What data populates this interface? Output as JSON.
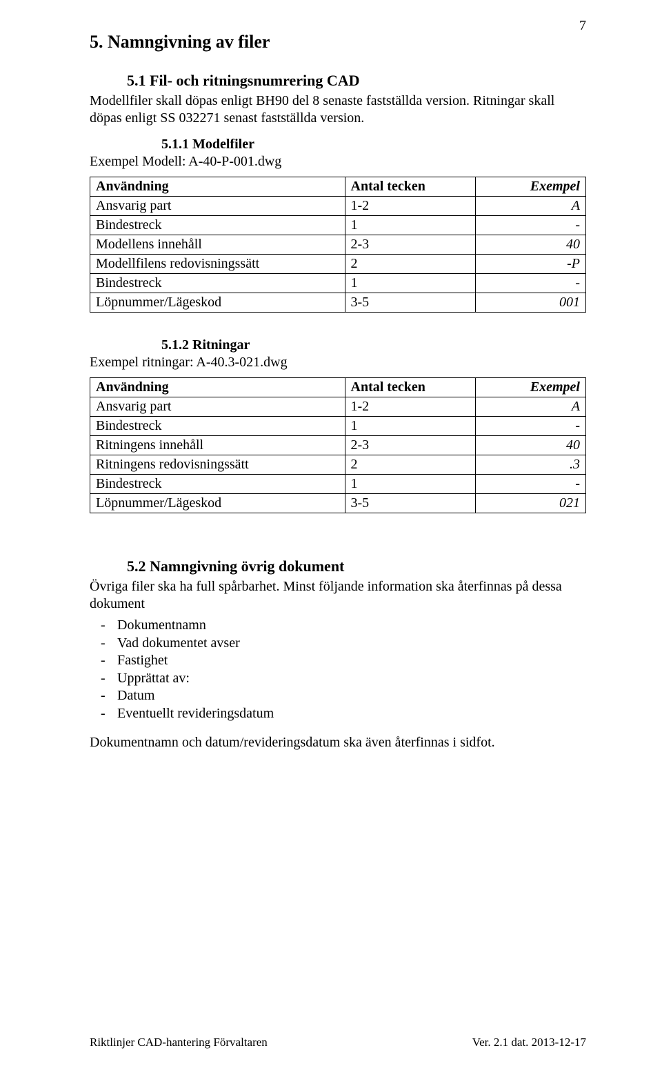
{
  "page_number": "7",
  "h1": "5.  Namngivning av filer",
  "sec51": {
    "heading": "5.1  Fil- och ritningsnumrering CAD",
    "p1": "Modellfiler skall döpas enligt BH90 del 8 senaste fastställda version. Ritningar skall döpas enligt SS 032271 senast fastställda version."
  },
  "sec511": {
    "heading": "5.1.1   Modelfiler",
    "example": "Exempel Modell: A-40-P-001.dwg"
  },
  "table1": {
    "headers": [
      "Användning",
      "Antal tecken",
      "Exempel"
    ],
    "rows": [
      [
        "Ansvarig part",
        "1-2",
        "A"
      ],
      [
        "Bindestreck",
        "1",
        "-"
      ],
      [
        "Modellens innehåll",
        "2-3",
        "40"
      ],
      [
        "Modellfilens redovisningssätt",
        "2",
        "-P"
      ],
      [
        "Bindestreck",
        "1",
        "-"
      ],
      [
        "Löpnummer/Lägeskod",
        "3-5",
        "001"
      ]
    ]
  },
  "sec512": {
    "heading": "5.1.2   Ritningar",
    "example": "Exempel ritningar: A-40.3-021.dwg"
  },
  "table2": {
    "headers": [
      "Användning",
      "Antal tecken",
      "Exempel"
    ],
    "rows": [
      [
        "Ansvarig part",
        "1-2",
        "A"
      ],
      [
        "Bindestreck",
        "1",
        "-"
      ],
      [
        "Ritningens innehåll",
        "2-3",
        "40"
      ],
      [
        "Ritningens redovisningssätt",
        "2",
        ".3"
      ],
      [
        "Bindestreck",
        "1",
        "-"
      ],
      [
        "Löpnummer/Lägeskod",
        "3-5",
        "021"
      ]
    ]
  },
  "sec52": {
    "heading": "5.2 Namngivning övrig dokument",
    "p1": "Övriga filer ska ha full spårbarhet. Minst följande information ska återfinnas på dessa dokument",
    "list": [
      "Dokumentnamn",
      "Vad dokumentet avser",
      "Fastighet",
      "Upprättat av:",
      "Datum",
      "Eventuellt revideringsdatum"
    ],
    "p2": "Dokumentnamn och datum/revideringsdatum ska även återfinnas i sidfot."
  },
  "footer": {
    "left": "Riktlinjer CAD-hantering Förvaltaren",
    "right": "Ver. 2.1 dat. 2013-12-17"
  }
}
